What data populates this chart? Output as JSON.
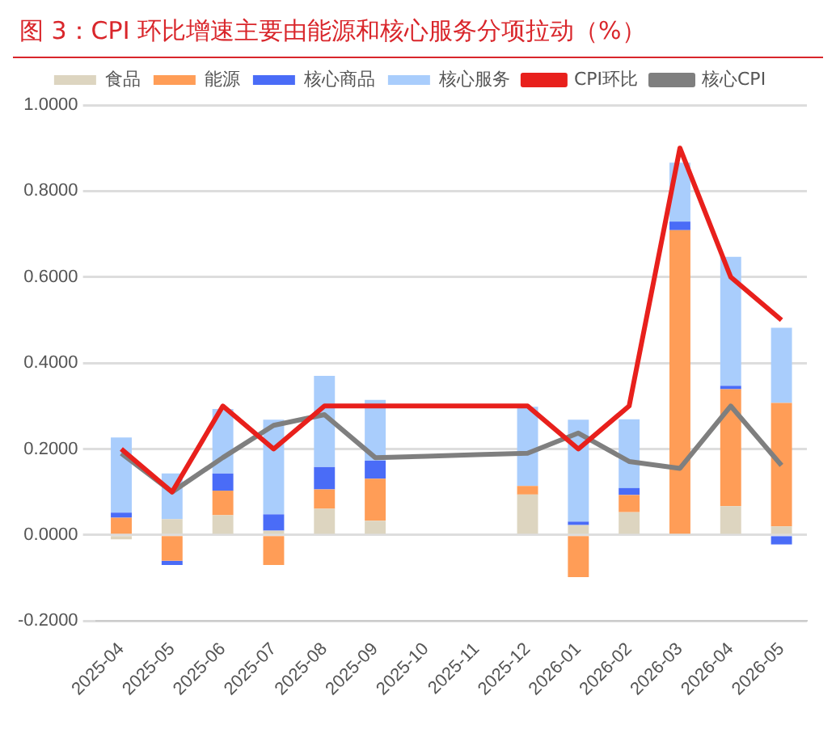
{
  "chart_data": {
    "type": "bar",
    "title": "图 3：CPI 环比增速主要由能源和核心服务分项拉动（%）",
    "categories": [
      "2025-04",
      "2025-05",
      "2025-06",
      "2025-07",
      "2025-08",
      "2025-09",
      "2025-10",
      "2025-11",
      "2025-12",
      "2026-01",
      "2026-02",
      "2026-03",
      "2026-04",
      "2026-05"
    ],
    "stacked": true,
    "series": [
      {
        "name": "食品",
        "color": "#ddd5c0",
        "values": [
          -0.01,
          0.037,
          0.046,
          0.01,
          0.061,
          0.033,
          null,
          null,
          0.094,
          0.023,
          0.053,
          0,
          0.067,
          0.02
        ]
      },
      {
        "name": "能源",
        "color": "#ff9d57",
        "values": [
          0.04,
          -0.06,
          0.057,
          -0.07,
          0.045,
          0.098,
          null,
          null,
          0.02,
          -0.098,
          0.04,
          0.709,
          0.272,
          0.287
        ]
      },
      {
        "name": "核心商品",
        "color": "#4a6cf7",
        "values": [
          0.012,
          -0.01,
          0.04,
          0.038,
          0.052,
          0.042,
          null,
          null,
          0,
          0.008,
          0.016,
          0.02,
          0.008,
          -0.022
        ]
      },
      {
        "name": "核心服务",
        "color": "#a9cdfc",
        "values": [
          0.175,
          0.106,
          0.15,
          0.22,
          0.212,
          0.141,
          null,
          null,
          0.184,
          0.237,
          0.16,
          0.137,
          0.3,
          0.175
        ]
      },
      {
        "name": "CPI环比",
        "type": "line",
        "color": "#e8201c",
        "values": [
          0.2,
          0.1,
          0.3,
          0.2,
          0.3,
          0.3,
          0.3,
          0.3,
          0.3,
          0.2,
          0.3,
          0.9,
          0.6,
          0.5
        ]
      },
      {
        "name": "核心CPI",
        "type": "line",
        "color": "#7f7f7f",
        "values": [
          0.19,
          0.1,
          0.18,
          0.255,
          0.28,
          0.18,
          0.183,
          0.187,
          0.19,
          0.237,
          0.171,
          0.155,
          0.3,
          0.162
        ]
      }
    ],
    "ylim": [
      -0.2,
      1.0
    ],
    "yticks": [
      {
        "value": -0.2,
        "label": "-0.2000"
      },
      {
        "value": 0,
        "label": "0.0000"
      },
      {
        "value": 0.2,
        "label": "0.2000"
      },
      {
        "value": 0.4,
        "label": "0.4000"
      },
      {
        "value": 0.6,
        "label": "0.6000"
      },
      {
        "value": 0.8,
        "label": "0.8000"
      },
      {
        "value": 1.0,
        "label": "1.0000"
      }
    ],
    "grid": "y",
    "legend": "top",
    "marker": "none"
  }
}
